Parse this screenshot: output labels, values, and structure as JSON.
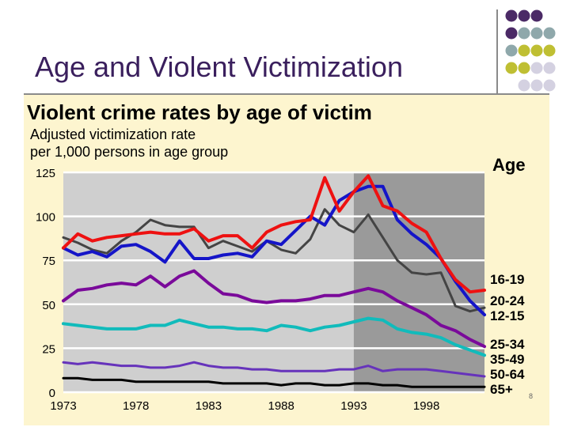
{
  "slide": {
    "title": "Age and Violent Victimization",
    "number": "8",
    "colors": {
      "title": "#3a1f5d",
      "dot_purple": "#4b2a66",
      "dot_teal": "#8fa8ab",
      "dot_olive": "#bfbf33",
      "dot_lilac": "#d4d1e1",
      "panel": "#fdf5cf"
    }
  },
  "chart_data": {
    "type": "line",
    "title": "Violent crime rates by age of victim",
    "subtitle_lines": [
      "Adjusted victimization rate",
      "per 1,000 persons in age group"
    ],
    "legend_title": "Age",
    "x": [
      1973,
      1974,
      1975,
      1976,
      1977,
      1978,
      1979,
      1980,
      1981,
      1982,
      1983,
      1984,
      1985,
      1986,
      1987,
      1988,
      1989,
      1990,
      1991,
      1992,
      1993,
      1994,
      1995,
      1996,
      1997,
      1998,
      1999,
      2000,
      2001,
      2002
    ],
    "x_tick_labels": [
      "1973",
      "1978",
      "1983",
      "1988",
      "1993",
      "1998"
    ],
    "x_tick_values": [
      1973,
      1978,
      1983,
      1988,
      1993,
      1998
    ],
    "y_tick_labels": [
      "0",
      "25",
      "50",
      "75",
      "100",
      "125"
    ],
    "y_tick_values": [
      0,
      25,
      50,
      75,
      100,
      125
    ],
    "ylim": [
      0,
      125
    ],
    "xlim": [
      1973,
      2002
    ],
    "shaded_from": 1993,
    "series": [
      {
        "name": "16-19",
        "color": "#ee1111",
        "width": 4,
        "values": [
          82,
          90,
          86,
          88,
          89,
          90,
          91,
          90,
          90,
          93,
          86,
          89,
          89,
          82,
          91,
          95,
          97,
          98,
          122,
          103,
          114,
          123,
          106,
          103,
          96,
          91,
          76,
          64,
          57,
          58
        ]
      },
      {
        "name": "12-15",
        "color": "#1515c8",
        "width": 4,
        "values": [
          82,
          78,
          80,
          77,
          83,
          84,
          80,
          74,
          86,
          76,
          76,
          78,
          79,
          77,
          86,
          84,
          92,
          100,
          95,
          109,
          114,
          117,
          117,
          98,
          90,
          84,
          76,
          63,
          52,
          44
        ]
      },
      {
        "name": "20-24",
        "color": "#444444",
        "width": 3,
        "values": [
          88,
          85,
          81,
          79,
          86,
          91,
          98,
          95,
          94,
          94,
          82,
          86,
          83,
          80,
          86,
          81,
          79,
          87,
          104,
          95,
          91,
          101,
          88,
          75,
          68,
          67,
          68,
          49,
          46,
          48
        ]
      },
      {
        "name": "25-34",
        "color": "#7a0a9a",
        "width": 4,
        "values": [
          52,
          58,
          59,
          61,
          62,
          61,
          66,
          60,
          66,
          69,
          62,
          56,
          55,
          52,
          51,
          52,
          52,
          53,
          55,
          55,
          57,
          59,
          57,
          52,
          48,
          44,
          38,
          35,
          30,
          26
        ]
      },
      {
        "name": "35-49",
        "color": "#11bbbb",
        "width": 4,
        "values": [
          39,
          38,
          37,
          36,
          36,
          36,
          38,
          38,
          41,
          39,
          37,
          37,
          36,
          36,
          35,
          38,
          37,
          35,
          37,
          38,
          40,
          42,
          41,
          36,
          34,
          33,
          31,
          27,
          24,
          21
        ]
      },
      {
        "name": "50-64",
        "color": "#6633bb",
        "width": 3,
        "values": [
          17,
          16,
          17,
          16,
          15,
          15,
          14,
          14,
          15,
          17,
          15,
          14,
          14,
          13,
          13,
          12,
          12,
          12,
          12,
          13,
          13,
          15,
          12,
          13,
          13,
          13,
          12,
          11,
          10,
          9
        ]
      },
      {
        "name": "65+",
        "color": "#000000",
        "width": 3,
        "values": [
          8,
          8,
          7,
          7,
          7,
          6,
          6,
          6,
          6,
          6,
          6,
          5,
          5,
          5,
          5,
          4,
          5,
          5,
          4,
          4,
          5,
          5,
          4,
          4,
          3,
          3,
          3,
          3,
          3,
          3
        ]
      }
    ],
    "legend_entries": [
      "16-19",
      "20-24",
      "12-15",
      "25-34",
      "35-49",
      "50-64",
      "65+"
    ]
  }
}
